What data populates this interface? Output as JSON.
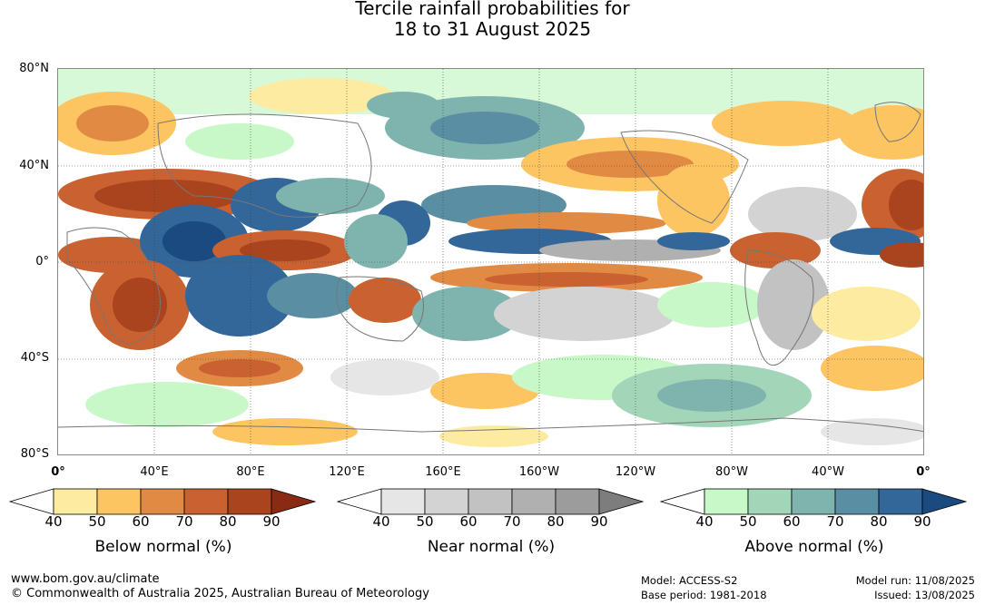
{
  "title": {
    "line1": "Tercile rainfall probabilities for",
    "line2": "18 to 31 August 2025"
  },
  "map": {
    "y_labels": [
      "80°N",
      "40°N",
      "0°",
      "40°S",
      "80°S"
    ],
    "x_labels": [
      "0°",
      "40°E",
      "80°E",
      "120°E",
      "160°E",
      "160°W",
      "120°W",
      "80°W",
      "40°W",
      "0°"
    ]
  },
  "colorbars": [
    {
      "title": "Below normal (%)",
      "ticks": [
        "40",
        "50",
        "60",
        "70",
        "80",
        "90"
      ],
      "colors": [
        "#ffffff",
        "#fdeba1",
        "#fdc462",
        "#e08a44",
        "#c96230",
        "#a9441f",
        "#8a2a12"
      ]
    },
    {
      "title": "Near normal (%)",
      "ticks": [
        "40",
        "50",
        "60",
        "70",
        "80",
        "90"
      ],
      "colors": [
        "#ffffff",
        "#e6e6e6",
        "#d3d3d3",
        "#c2c2c2",
        "#b0b0b0",
        "#9c9c9c",
        "#7d7d7d"
      ]
    },
    {
      "title": "Above normal (%)",
      "ticks": [
        "40",
        "50",
        "60",
        "70",
        "80",
        "90"
      ],
      "colors": [
        "#ffffff",
        "#c8f7c8",
        "#a3d6b8",
        "#7fb4ae",
        "#5a8fa3",
        "#336699",
        "#1a4a80"
      ]
    }
  ],
  "footer": {
    "url": "www.bom.gov.au/climate",
    "copyright": "© Commonwealth of Australia 2025, Australian Bureau of Meteorology",
    "model": "Model: ACCESS-S2",
    "base_period": "Base period: 1981-2018",
    "model_run": "Model run: 11/08/2025",
    "issued": "Issued: 13/08/2025"
  }
}
